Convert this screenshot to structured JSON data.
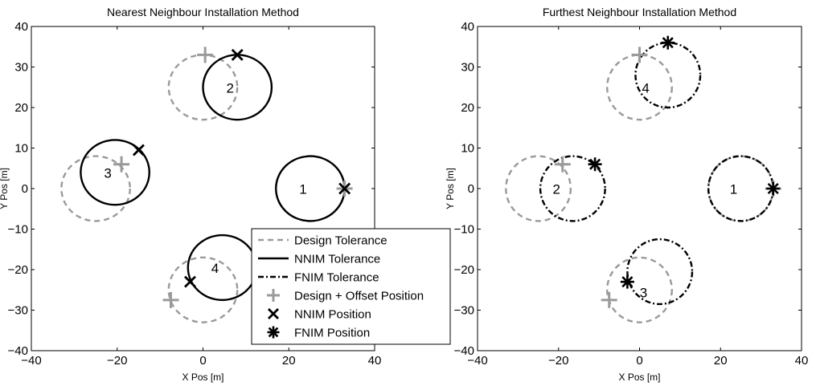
{
  "chart_data": [
    {
      "type": "scatter",
      "title": "Nearest Neighbour Installation Method",
      "xlabel": "X Pos [m]",
      "ylabel": "Y Pos [m]",
      "xlim": [
        -40,
        40
      ],
      "ylim": [
        -40,
        40
      ],
      "x_ticks": [
        -40,
        -20,
        0,
        20,
        40
      ],
      "y_ticks": [
        -40,
        -30,
        -20,
        -10,
        0,
        10,
        20,
        30,
        40
      ],
      "grid": false,
      "legend_placement": "bottom-right",
      "series": [
        {
          "name": "Design Tolerance",
          "style": "dashed circle",
          "color": "#9a9a9a",
          "radius": 8,
          "centers": [
            {
              "x": 25,
              "y": 0
            },
            {
              "x": 0,
              "y": 25
            },
            {
              "x": -25,
              "y": 0
            },
            {
              "x": 0,
              "y": -25
            }
          ]
        },
        {
          "name": "NNIM Tolerance",
          "style": "solid circle",
          "color": "#000000",
          "radius": 8,
          "centers": [
            {
              "x": 25,
              "y": 0,
              "label": "1"
            },
            {
              "x": 8,
              "y": 25,
              "label": "2"
            },
            {
              "x": -20.5,
              "y": 4,
              "label": "3"
            },
            {
              "x": 4.5,
              "y": -19.5,
              "label": "4"
            }
          ]
        },
        {
          "name": "Design + Offset Position",
          "marker": "plus",
          "color": "#9a9a9a",
          "points": [
            {
              "x": 33,
              "y": 0
            },
            {
              "x": 0.5,
              "y": 33
            },
            {
              "x": -19,
              "y": 6
            },
            {
              "x": -7.5,
              "y": -27.5
            }
          ]
        },
        {
          "name": "NNIM Position",
          "marker": "x",
          "color": "#000000",
          "points": [
            {
              "x": 33,
              "y": 0
            },
            {
              "x": 8,
              "y": 33
            },
            {
              "x": -15,
              "y": 9.5
            },
            {
              "x": -3,
              "y": -23
            }
          ]
        }
      ]
    },
    {
      "type": "scatter",
      "title": "Furthest Neighbour Installation Method",
      "xlabel": "X Pos [m]",
      "ylabel": "Y Pos [m]",
      "xlim": [
        -40,
        40
      ],
      "ylim": [
        -40,
        40
      ],
      "x_ticks": [
        -40,
        -20,
        0,
        20,
        40
      ],
      "y_ticks": [
        -40,
        -30,
        -20,
        -10,
        0,
        10,
        20,
        30,
        40
      ],
      "grid": false,
      "series": [
        {
          "name": "Design Tolerance",
          "style": "dashed circle",
          "color": "#9a9a9a",
          "radius": 8,
          "centers": [
            {
              "x": 25,
              "y": 0
            },
            {
              "x": 0,
              "y": 25
            },
            {
              "x": -25,
              "y": 0
            },
            {
              "x": 0,
              "y": -25
            }
          ]
        },
        {
          "name": "FNIM Tolerance",
          "style": "dash-dot circle",
          "color": "#000000",
          "radius": 8,
          "centers": [
            {
              "x": 25,
              "y": 0,
              "label": "1"
            },
            {
              "x": 7,
              "y": 28
            },
            {
              "x": -16.5,
              "y": 0
            },
            {
              "x": 5,
              "y": -20.5
            }
          ]
        },
        {
          "name": "Design Tolerance labels",
          "labels_only": true,
          "centers": [
            {
              "x": 1.5,
              "y": 25,
              "label": "4"
            },
            {
              "x": -20.5,
              "y": 0,
              "label": "2"
            },
            {
              "x": 1,
              "y": -25.5,
              "label": "3"
            }
          ]
        },
        {
          "name": "Design + Offset Position",
          "marker": "plus",
          "color": "#9a9a9a",
          "points": [
            {
              "x": 33,
              "y": 0
            },
            {
              "x": 0,
              "y": 33
            },
            {
              "x": -19,
              "y": 6
            },
            {
              "x": -7.5,
              "y": -27.5
            }
          ]
        },
        {
          "name": "FNIM Position",
          "marker": "asterisk",
          "color": "#000000",
          "points": [
            {
              "x": 33,
              "y": 0
            },
            {
              "x": 7,
              "y": 36
            },
            {
              "x": -11,
              "y": 6
            },
            {
              "x": -3,
              "y": -23
            }
          ]
        }
      ]
    }
  ],
  "legend": {
    "items": [
      {
        "label": "Design Tolerance",
        "kind": "line-dashed",
        "color": "#9a9a9a"
      },
      {
        "label": "NNIM Tolerance",
        "kind": "line-solid",
        "color": "#000000"
      },
      {
        "label": "FNIM Tolerance",
        "kind": "line-dashdot",
        "color": "#000000"
      },
      {
        "label": "Design + Offset Position",
        "kind": "plus",
        "color": "#9a9a9a"
      },
      {
        "label": "NNIM Position",
        "kind": "x",
        "color": "#000000"
      },
      {
        "label": "FNIM Position",
        "kind": "asterisk",
        "color": "#000000"
      }
    ]
  }
}
